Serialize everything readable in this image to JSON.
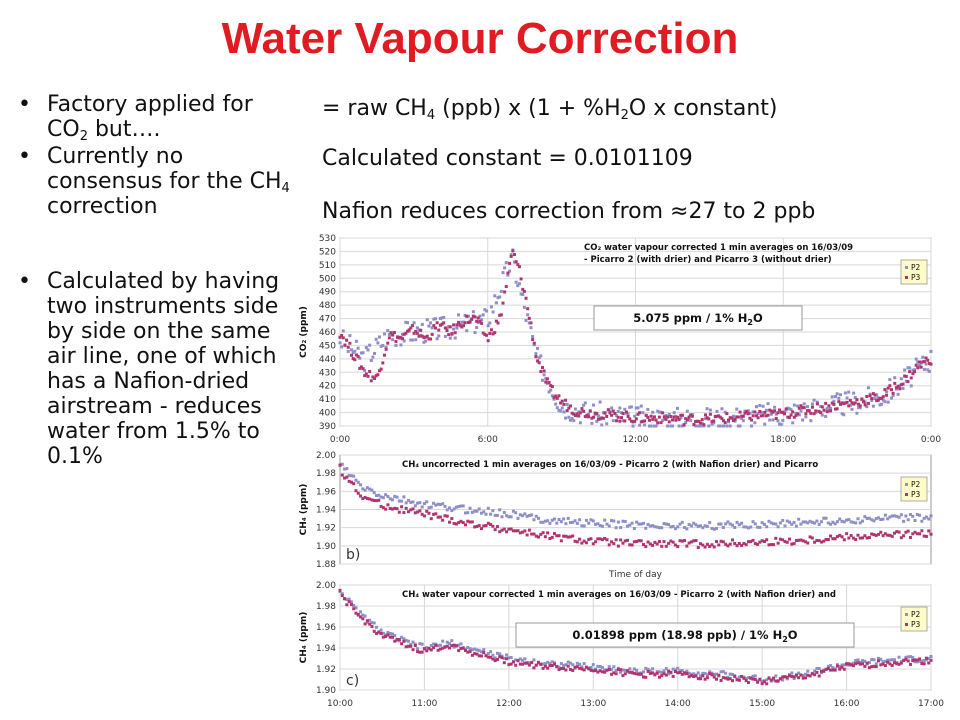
{
  "slide": {
    "title": "Water Vapour Correction",
    "bullets": [
      {
        "parts": [
          [
            "Factory applied for CO",
            ""
          ],
          [
            "2",
            "sub"
          ],
          [
            " but….",
            ""
          ]
        ]
      },
      {
        "parts": [
          [
            "Currently no consensus for the CH",
            ""
          ],
          [
            "4",
            "sub"
          ],
          [
            " correction",
            ""
          ]
        ]
      },
      {
        "parts": [
          [
            "Calculated by having two instruments side by side on the same air line, one of which has a Nafion-dried airstream - reduces water from 1.5% to 0.1%",
            ""
          ]
        ]
      }
    ],
    "formula": [
      [
        "= raw CH",
        ""
      ],
      [
        "4",
        "sub"
      ],
      [
        " (ppb) x (1 + %H",
        ""
      ],
      [
        "2",
        "sub"
      ],
      [
        "O x constant)",
        ""
      ]
    ],
    "constant_line": "Calculated constant = 0.0101109",
    "nafion_line": "Nafion reduces correction from ≈27 to 2 ppb",
    "colors": {
      "title": "#e01b22",
      "p2": "#8e8ec8",
      "p3": "#b0356f",
      "legend_bg": "#fdfbc8"
    }
  },
  "chart_data": [
    {
      "type": "scatter",
      "title": "CO₂ water vapour corrected 1 min averages on 16/03/09 - Picarro 2 (with drier) and Picarro 3 (without drier)",
      "title_lines": [
        "CO₂ water vapour corrected 1 min averages on 16/03/09",
        "- Picarro 2 (with drier) and Picarro 3 (without drier)"
      ],
      "ylabel": "CO₂ (ppm)",
      "xlabel": "",
      "x_ticks": [
        "0:00",
        "6:00",
        "12:00",
        "18:00",
        "0:00"
      ],
      "xlim": [
        0,
        24
      ],
      "ylim": [
        390,
        530
      ],
      "y_ticks": [
        "390",
        "400",
        "410",
        "420",
        "430",
        "440",
        "450",
        "460",
        "470",
        "480",
        "490",
        "500",
        "510",
        "520",
        "530"
      ],
      "legend": [
        "P2",
        "P3"
      ],
      "legend_position": "top-right",
      "annotation": {
        "text": "5.075 ppm / 1% H",
        "sub": "2",
        "tail": "O"
      },
      "grid": true,
      "series": [
        {
          "name": "P2",
          "x": [
            0,
            1,
            2,
            3,
            4,
            5,
            6,
            7,
            8,
            9,
            10,
            11,
            12,
            13,
            14,
            15,
            16,
            17,
            18,
            19,
            20,
            21,
            22,
            23,
            24
          ],
          "values": [
            455,
            440,
            458,
            460,
            462,
            465,
            470,
            515,
            440,
            405,
            400,
            398,
            396,
            396,
            395,
            395,
            396,
            398,
            399,
            402,
            405,
            408,
            412,
            425,
            440
          ]
        },
        {
          "name": "P3",
          "x": [
            0,
            0.5,
            1,
            1.5,
            2,
            2.5,
            3,
            3.5,
            4,
            4.5,
            5,
            5.5,
            6,
            6.5,
            7,
            7.3,
            7.6,
            8,
            8.5,
            9,
            9.5,
            10,
            11,
            12,
            13,
            14,
            15,
            16,
            17,
            18,
            19,
            20,
            21,
            22,
            23,
            23.5,
            24
          ],
          "values": [
            460,
            445,
            430,
            425,
            458,
            455,
            462,
            455,
            465,
            460,
            468,
            470,
            455,
            470,
            520,
            505,
            480,
            440,
            418,
            408,
            402,
            400,
            398,
            396,
            396,
            395,
            395,
            396,
            398,
            399,
            402,
            405,
            408,
            412,
            425,
            435,
            440
          ]
        }
      ]
    },
    {
      "type": "scatter",
      "title": "CH₄ uncorrected 1 min averages on 16/03/09 - Picarro 2 (with Nafion drier) and Picarro",
      "ylabel": "CH₄ (ppm)",
      "xlabel": "Time of day",
      "panel_label": "b)",
      "x_ticks": [],
      "xlim": [
        10,
        17
      ],
      "ylim": [
        1.88,
        2.0
      ],
      "y_ticks": [
        "1.88",
        "1.90",
        "1.92",
        "1.94",
        "1.96",
        "1.98",
        "2.00"
      ],
      "legend": [
        "P2",
        "P3"
      ],
      "legend_position": "top-right",
      "grid": true,
      "series": [
        {
          "name": "P2",
          "x": [
            10,
            10.25,
            10.5,
            11,
            11.5,
            12,
            12.5,
            13,
            13.5,
            14,
            14.5,
            15,
            15.5,
            16,
            16.5,
            17
          ],
          "values": [
            1.99,
            1.965,
            1.955,
            1.945,
            1.94,
            1.935,
            1.928,
            1.925,
            1.923,
            1.922,
            1.922,
            1.924,
            1.926,
            1.928,
            1.93,
            1.931
          ]
        },
        {
          "name": "P3",
          "x": [
            10,
            10.25,
            10.5,
            11,
            11.5,
            12,
            12.5,
            13,
            13.5,
            14,
            14.5,
            15,
            15.5,
            16,
            16.5,
            17
          ],
          "values": [
            1.985,
            1.955,
            1.945,
            1.935,
            1.925,
            1.918,
            1.91,
            1.905,
            1.902,
            1.902,
            1.902,
            1.904,
            1.906,
            1.91,
            1.912,
            1.913
          ]
        }
      ]
    },
    {
      "type": "scatter",
      "title": "CH₄ water vapour corrected 1 min averages on 16/03/09 - Picarro 2 (with Nafion drier) and",
      "ylabel": "CH₄ (ppm)",
      "xlabel": "",
      "panel_label": "c)",
      "x_ticks": [
        "10:00",
        "11:00",
        "12:00",
        "13:00",
        "14:00",
        "15:00",
        "16:00",
        "17:00"
      ],
      "xlim": [
        10,
        17
      ],
      "ylim": [
        1.9,
        2.0
      ],
      "y_ticks": [
        "1.90",
        "1.92",
        "1.94",
        "1.96",
        "1.98",
        "2.00"
      ],
      "legend": [
        "P2",
        "P3"
      ],
      "legend_position": "top-right",
      "annotation": {
        "text": "0.01898 ppm (18.98 ppb) / 1% H",
        "sub": "2",
        "tail": "O"
      },
      "grid": true,
      "series": [
        {
          "name": "P2",
          "x": [
            10,
            10.2,
            10.5,
            10.8,
            11,
            11.3,
            11.6,
            12,
            12.5,
            13,
            13.5,
            14,
            14.5,
            15,
            15.5,
            16,
            16.5,
            17
          ],
          "values": [
            1.995,
            1.975,
            1.955,
            1.945,
            1.94,
            1.945,
            1.938,
            1.93,
            1.925,
            1.922,
            1.918,
            1.918,
            1.915,
            1.91,
            1.915,
            1.925,
            1.928,
            1.93
          ]
        },
        {
          "name": "P3",
          "x": [
            10,
            10.2,
            10.5,
            10.8,
            11,
            11.3,
            11.6,
            12,
            12.5,
            13,
            13.5,
            14,
            14.5,
            15,
            15.5,
            16,
            16.5,
            17
          ],
          "values": [
            1.992,
            1.972,
            1.952,
            1.942,
            1.937,
            1.943,
            1.935,
            1.927,
            1.922,
            1.92,
            1.915,
            1.915,
            1.912,
            1.908,
            1.913,
            1.922,
            1.926,
            1.928
          ]
        }
      ]
    }
  ]
}
